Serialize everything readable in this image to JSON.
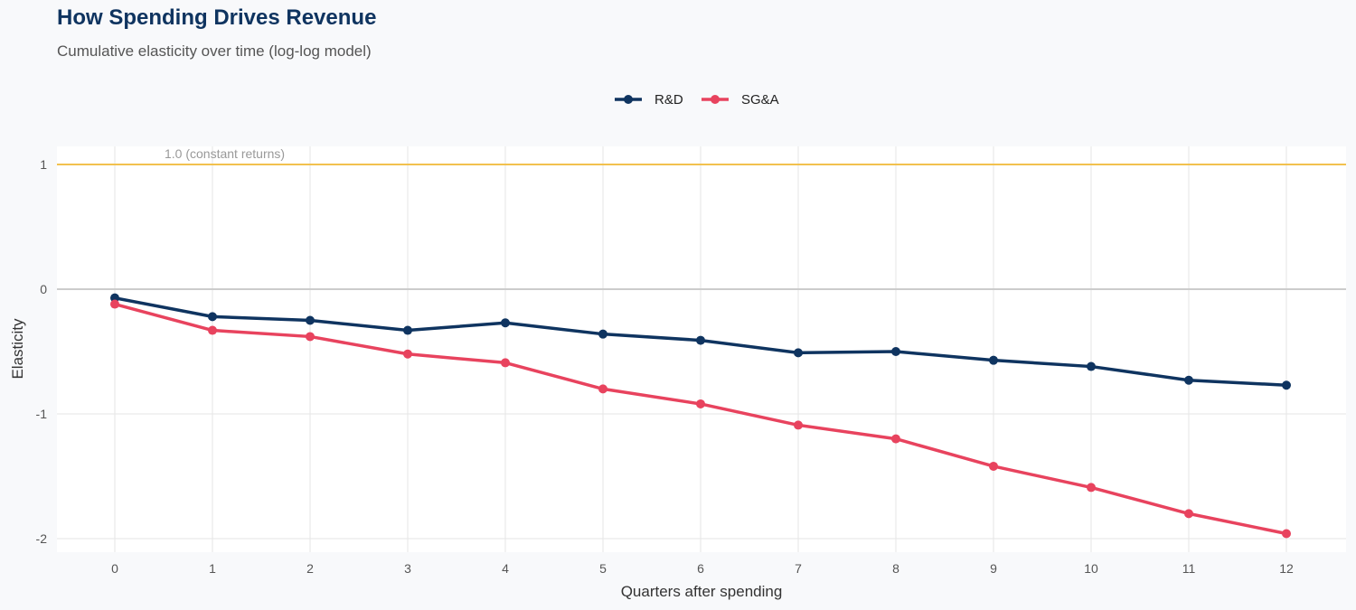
{
  "chart_data": {
    "type": "line",
    "title": "How Spending Drives Revenue",
    "subtitle": "Cumulative elasticity over time (log-log model)",
    "xlabel": "Quarters after spending",
    "ylabel": "Elasticity",
    "x": [
      0,
      1,
      2,
      3,
      4,
      5,
      6,
      7,
      8,
      9,
      10,
      11,
      12
    ],
    "xlim": [
      -0.6,
      12.6
    ],
    "ylim": [
      -2.15,
      1.15
    ],
    "yticks": [
      1,
      0,
      -1,
      -2
    ],
    "ytick_labels": [
      "1",
      "0",
      "-1",
      "-2"
    ],
    "grid": true,
    "legend_position": "top",
    "reference_lines": [
      {
        "y": 1,
        "label": "1.0 (constant returns)",
        "color": "#f2c14e"
      },
      {
        "y": 0,
        "label": "",
        "color": "#cccccc"
      }
    ],
    "series": [
      {
        "name": "R&D",
        "color": "#0f3460",
        "values": [
          -0.07,
          -0.22,
          -0.25,
          -0.33,
          -0.27,
          -0.36,
          -0.41,
          -0.51,
          -0.5,
          -0.57,
          -0.62,
          -0.73,
          -0.77
        ]
      },
      {
        "name": "SG&A",
        "color": "#e8435e",
        "values": [
          -0.12,
          -0.33,
          -0.38,
          -0.52,
          -0.59,
          -0.8,
          -0.92,
          -1.09,
          -1.2,
          -1.42,
          -1.59,
          -1.8,
          -1.96
        ]
      }
    ]
  }
}
